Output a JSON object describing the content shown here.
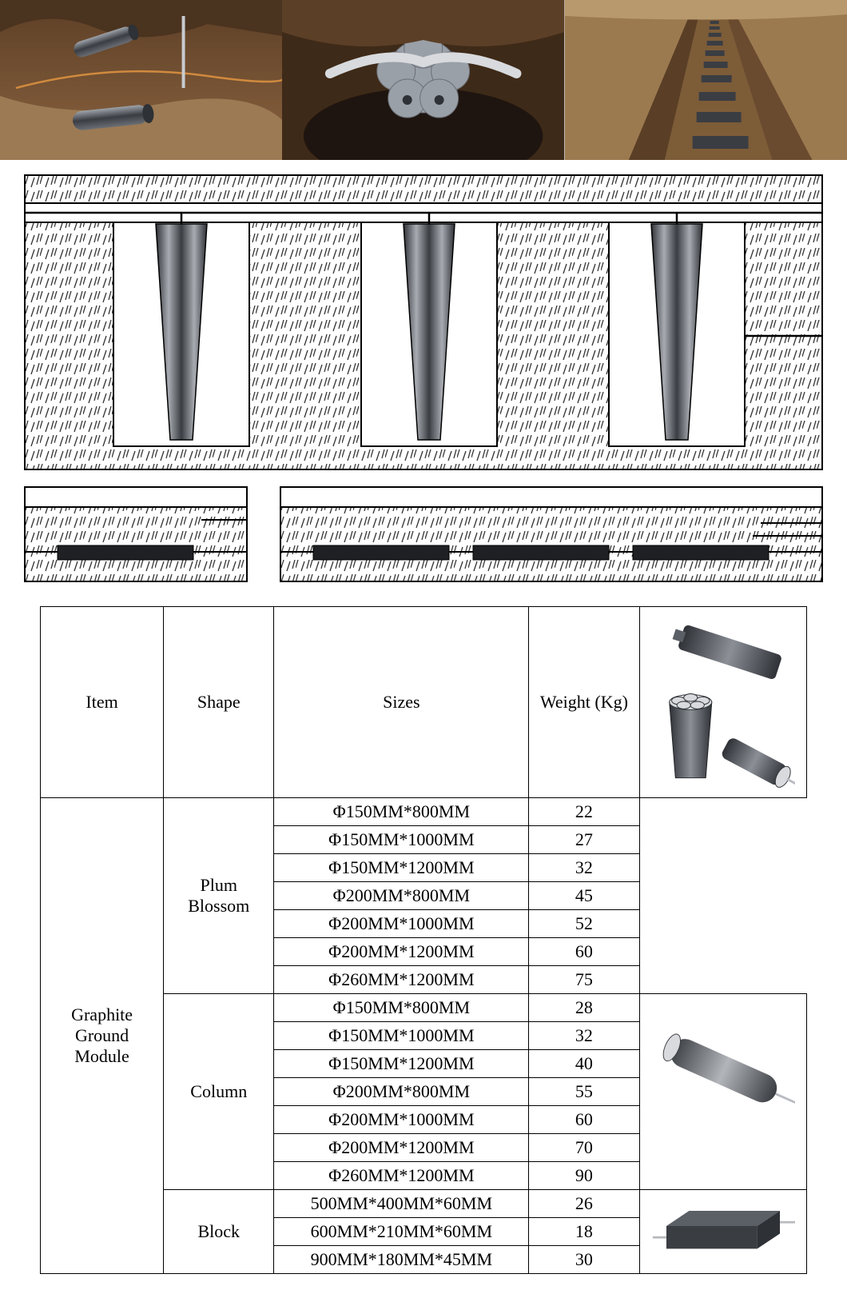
{
  "colors": {
    "soil_brown_dark": "#6b4a2e",
    "soil_brown_mid": "#8a6340",
    "soil_brown_light": "#a07a52",
    "soil_clay": "#b08a5a",
    "concrete": "#9aa0a8",
    "graphite_dark": "#3a3d42",
    "graphite_mid": "#5b5f66",
    "graphite_light": "#9ea3aa",
    "wire_copper": "#d08a3e",
    "steel": "#c8cbcf",
    "white": "#ffffff",
    "black": "#000000",
    "hatch": "#333333"
  },
  "table": {
    "headers": [
      "Item",
      "Shape",
      "Sizes",
      "Weight (Kg)"
    ],
    "item_label": "Graphite Ground Module",
    "shapes": [
      {
        "name": "Plum Blossom",
        "rows": [
          {
            "size": "Φ150MM*800MM",
            "weight": "22"
          },
          {
            "size": "Φ150MM*1000MM",
            "weight": "27"
          },
          {
            "size": "Φ150MM*1200MM",
            "weight": "32"
          },
          {
            "size": "Φ200MM*800MM",
            "weight": "45"
          },
          {
            "size": "Φ200MM*1000MM",
            "weight": "52"
          },
          {
            "size": "Φ200MM*1200MM",
            "weight": "60"
          },
          {
            "size": "Φ260MM*1200MM",
            "weight": "75"
          }
        ]
      },
      {
        "name": "Column",
        "rows": [
          {
            "size": "Φ150MM*800MM",
            "weight": "28"
          },
          {
            "size": "Φ150MM*1000MM",
            "weight": "32"
          },
          {
            "size": "Φ150MM*1200MM",
            "weight": "40"
          },
          {
            "size": "Φ200MM*800MM",
            "weight": "55"
          },
          {
            "size": "Φ200MM*1000MM",
            "weight": "60"
          },
          {
            "size": "Φ200MM*1200MM",
            "weight": "70"
          },
          {
            "size": "Φ260MM*1200MM",
            "weight": "90"
          }
        ]
      },
      {
        "name": "Block",
        "rows": [
          {
            "size": "500MM*400MM*60MM",
            "weight": "26"
          },
          {
            "size": "600MM*210MM*60MM",
            "weight": "18"
          },
          {
            "size": "900MM*180MM*45MM",
            "weight": "30"
          }
        ]
      }
    ]
  }
}
